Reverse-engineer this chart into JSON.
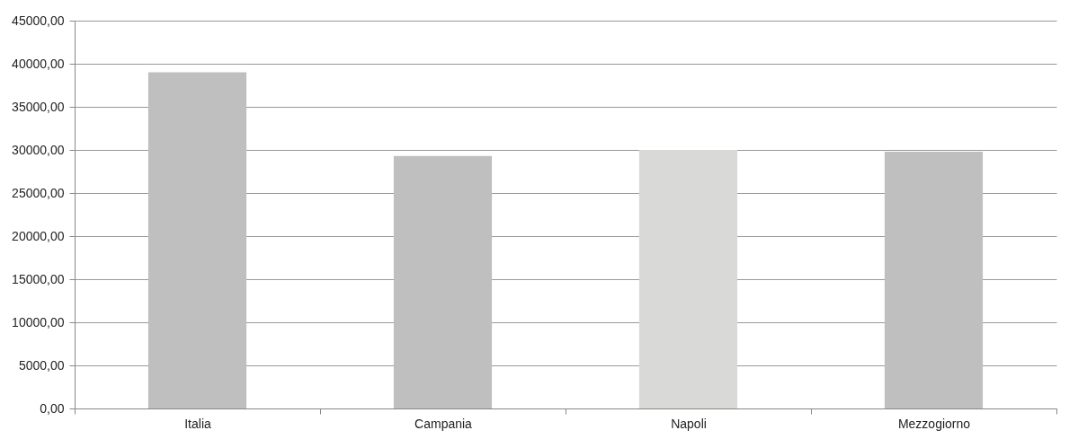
{
  "chart_data": {
    "type": "bar",
    "categories": [
      "Italia",
      "Campania",
      "Napoli",
      "Mezzogiorno"
    ],
    "values": [
      39000,
      29300,
      30000,
      29800
    ],
    "colors": [
      "#bfbfbf",
      "#bfbfbf",
      "#d9d9d7",
      "#bfbfbf"
    ],
    "ylim": [
      0,
      45000
    ],
    "yticks": [
      {
        "value": 0,
        "label": "0,00"
      },
      {
        "value": 5000,
        "label": "5000,00"
      },
      {
        "value": 10000,
        "label": "10000,00"
      },
      {
        "value": 15000,
        "label": "15000,00"
      },
      {
        "value": 20000,
        "label": "20000,00"
      },
      {
        "value": 25000,
        "label": "25000,00"
      },
      {
        "value": 30000,
        "label": "30000,00"
      },
      {
        "value": 35000,
        "label": "35000,00"
      },
      {
        "value": 40000,
        "label": "40000,00"
      },
      {
        "value": 45000,
        "label": "45000,00"
      }
    ],
    "grid": "y"
  }
}
